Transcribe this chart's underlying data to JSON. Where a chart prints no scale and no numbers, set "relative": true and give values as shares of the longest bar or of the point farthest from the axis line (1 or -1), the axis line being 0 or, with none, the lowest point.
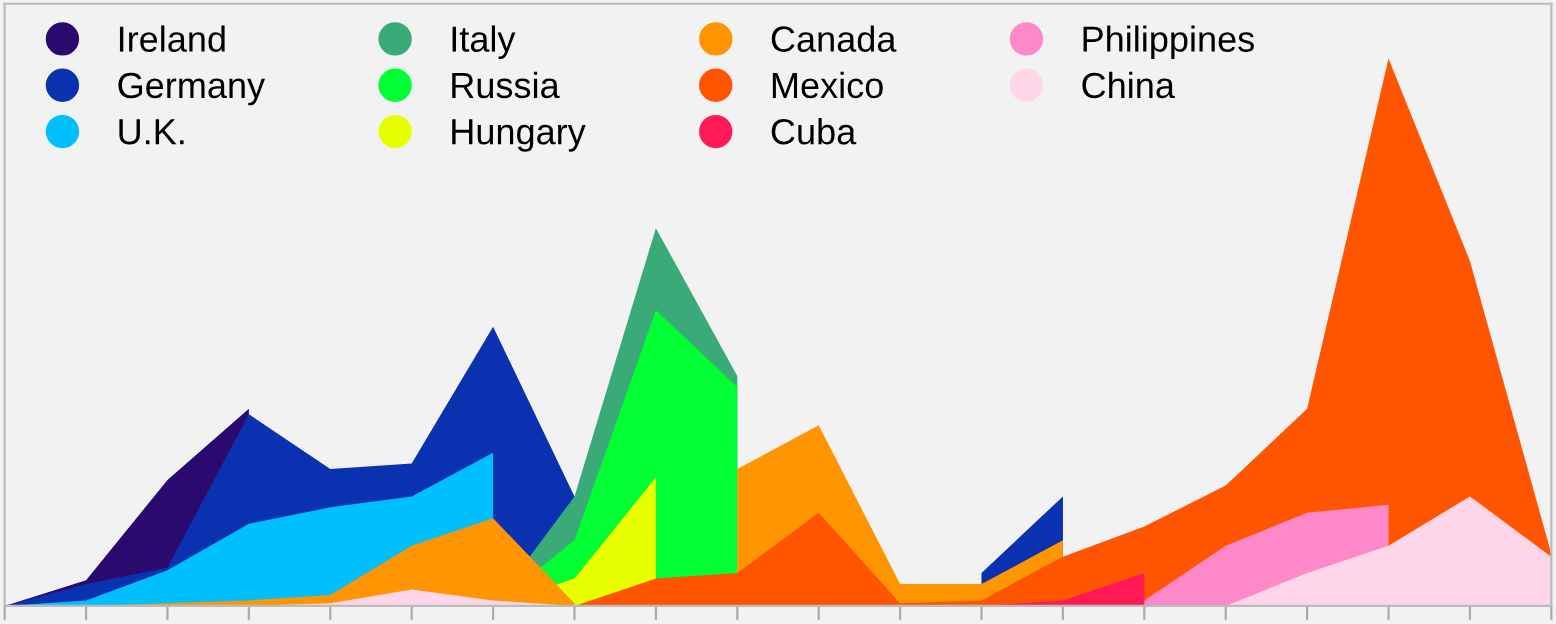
{
  "chart_data": {
    "type": "area",
    "relative": true,
    "legend": "top left",
    "grid": false,
    "tick_labels": false,
    "categories": [
      null,
      null,
      null,
      null,
      null,
      null,
      null,
      null,
      null,
      null,
      null,
      null,
      null,
      null,
      null,
      null,
      null,
      null,
      null,
      null
    ],
    "series": [
      {
        "name": "Ireland",
        "color": "#2a0a6e",
        "values": [
          0,
          0.047,
          0.23,
          0.36,
          null,
          null,
          null,
          null,
          null,
          null,
          null,
          null,
          null,
          null,
          null,
          null,
          null,
          null,
          null,
          null
        ]
      },
      {
        "name": "Germany",
        "color": "#0a32b0",
        "values": [
          0,
          0.04,
          0.07,
          0.35,
          0.25,
          0.26,
          0.51,
          0.2,
          null,
          null,
          null,
          null,
          0.06,
          0.2,
          null,
          null,
          null,
          null,
          null,
          null
        ]
      },
      {
        "name": "U.K.",
        "color": "#00bfff",
        "values": [
          0,
          0.01,
          0.065,
          0.15,
          0.18,
          0.2,
          0.28,
          null,
          null,
          null,
          null,
          null,
          null,
          null,
          null,
          null,
          null,
          null,
          null,
          null
        ]
      },
      {
        "name": "Italy",
        "color": "#3aaa78",
        "values": [
          null,
          null,
          null,
          null,
          null,
          null,
          0,
          0.2,
          0.69,
          0.42,
          null,
          null,
          null,
          null,
          null,
          null,
          null,
          null,
          null,
          null
        ]
      },
      {
        "name": "Russia",
        "color": "#00ff33",
        "values": [
          null,
          null,
          null,
          null,
          null,
          null,
          0,
          0.12,
          0.54,
          0.4,
          null,
          null,
          null,
          null,
          null,
          null,
          null,
          null,
          null,
          null
        ]
      },
      {
        "name": "Hungary",
        "color": "#e8ff00",
        "values": [
          null,
          null,
          null,
          null,
          null,
          null,
          0,
          0.05,
          0.235,
          null,
          null,
          null,
          null,
          null,
          null,
          null,
          null,
          null,
          null,
          null
        ]
      },
      {
        "name": "Canada",
        "color": "#ff9500",
        "values": [
          0,
          0,
          0.005,
          0.01,
          0.02,
          0.11,
          0.16,
          0.005,
          null,
          0.25,
          0.33,
          0.04,
          0.04,
          0.12,
          null,
          null,
          null,
          null,
          null,
          null
        ]
      },
      {
        "name": "Mexico",
        "color": "#ff5500",
        "values": [
          0,
          0,
          0,
          0,
          0,
          0,
          0,
          0,
          0.05,
          0.06,
          0.17,
          0.005,
          0.01,
          0.09,
          0.145,
          0.22,
          0.36,
          1.0,
          0.63,
          0.095
        ]
      },
      {
        "name": "Cuba",
        "color": "#ff1a55",
        "values": [
          null,
          null,
          null,
          null,
          null,
          null,
          null,
          null,
          null,
          null,
          null,
          null,
          0,
          0.01,
          0.06,
          null,
          null,
          null,
          null,
          null
        ]
      },
      {
        "name": "Philippines",
        "color": "#ff88c8",
        "values": [
          null,
          null,
          null,
          null,
          null,
          null,
          null,
          null,
          null,
          null,
          null,
          null,
          null,
          null,
          0.01,
          0.11,
          0.17,
          0.185,
          null,
          null
        ]
      },
      {
        "name": "China",
        "color": "#ffd5e8",
        "values": [
          0,
          0,
          0,
          0,
          0.005,
          0.03,
          0.01,
          0,
          0,
          0,
          0,
          0,
          0,
          0,
          0,
          0,
          0.06,
          0.11,
          0.2,
          0.09
        ]
      }
    ]
  }
}
